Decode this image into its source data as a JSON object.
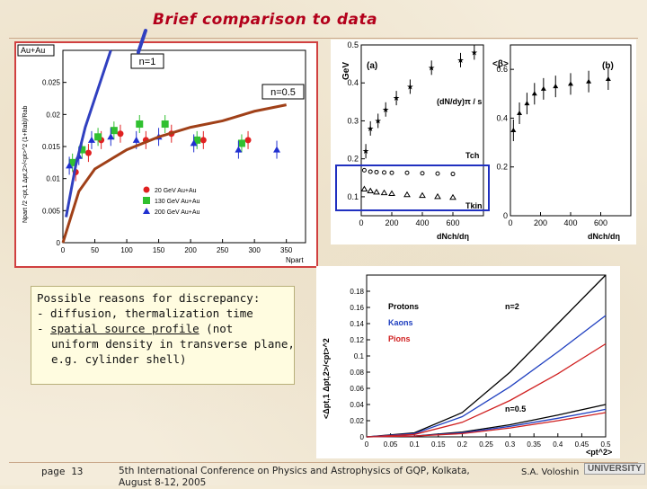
{
  "title": "Brief comparison to data",
  "reasons": {
    "line1": "Possible reasons for discrepancy:",
    "line2": "- diffusion, thermalization time",
    "line3_prefix": "- ",
    "line3_link": "spatial source profile",
    "line3_suffix": " (not",
    "line4": "uniform density in transverse plane,",
    "line5": "e.g. cylinder shell)"
  },
  "footer": {
    "page": "page 13",
    "conference": "5th International Conference on Physics and Astrophysics of GQP, Kolkata, August 8-12, 2005",
    "author": "S.A. Voloshin",
    "logo": "UNIVERSITY"
  },
  "chart_data": [
    {
      "type": "scatter",
      "panel_label": "Au+Au",
      "annotations": [
        "n=1",
        "n=0.5"
      ],
      "xlabel": "Npart",
      "ylabel": "Npart /2 <pt,1 Δpt,2>/<pt>^2 (1+Rab)/Rab",
      "xlim": [
        0,
        380
      ],
      "ylim": [
        0,
        0.03
      ],
      "x_ticks": [
        "0",
        "50",
        "100",
        "150",
        "200",
        "250",
        "300",
        "350"
      ],
      "y_ticks": [
        "0",
        "0.005",
        "0.01",
        "0.015",
        "0.02",
        "0.025"
      ],
      "legend": [
        "20 GeV Au+Au",
        "130 GeV Au+Au",
        "200 GeV Au+Au"
      ],
      "series": [
        {
          "name": "20 GeV Au+Au",
          "color": "#e02020",
          "x": [
            20,
            40,
            60,
            90,
            130,
            170,
            220,
            290
          ],
          "y": [
            0.011,
            0.014,
            0.016,
            0.017,
            0.016,
            0.017,
            0.016,
            0.016
          ]
        },
        {
          "name": "130 GeV Au+Au",
          "color": "#30c030",
          "x": [
            15,
            30,
            55,
            80,
            120,
            160,
            210,
            280
          ],
          "y": [
            0.0125,
            0.0145,
            0.0165,
            0.0175,
            0.0185,
            0.0185,
            0.016,
            0.0155
          ]
        },
        {
          "name": "200 GeV Au+Au",
          "color": "#2030d0",
          "x": [
            10,
            25,
            45,
            75,
            115,
            150,
            205,
            275,
            335
          ],
          "y": [
            0.012,
            0.0135,
            0.016,
            0.0165,
            0.016,
            0.0165,
            0.0155,
            0.0145,
            0.0145
          ]
        }
      ],
      "curve": {
        "x": [
          0,
          25,
          50,
          75,
          100,
          150,
          200,
          250,
          300,
          350
        ],
        "y": [
          0.0,
          0.008,
          0.0115,
          0.013,
          0.0145,
          0.0165,
          0.018,
          0.019,
          0.0205,
          0.0215
        ]
      },
      "fast_curve": {
        "x": [
          5,
          20,
          35,
          55,
          75
        ],
        "y": [
          0.004,
          0.012,
          0.018,
          0.024,
          0.031
        ]
      }
    },
    {
      "type": "scatter",
      "panel_label": "(a)",
      "ylabel": "GeV",
      "xlabel": "dNch/dη",
      "xlim": [
        0,
        800
      ],
      "ylim": [
        0.05,
        0.5
      ],
      "x_ticks": [
        "0",
        "200",
        "400",
        "600"
      ],
      "y_ticks": [
        "0.1",
        "0.2",
        "0.3",
        "0.4",
        "0.5"
      ],
      "labels": [
        "(dN/dy)π / s",
        "Tch",
        "Tkin"
      ],
      "series": [
        {
          "name": "Tch",
          "x": [
            20,
            60,
            100,
            150,
            200,
            300,
            400,
            500,
            600
          ],
          "y": [
            0.17,
            0.166,
            0.165,
            0.164,
            0.163,
            0.163,
            0.162,
            0.161,
            0.16
          ]
        },
        {
          "name": "Tkin",
          "x": [
            20,
            60,
            100,
            150,
            200,
            300,
            400,
            500,
            600
          ],
          "y": [
            0.12,
            0.115,
            0.112,
            0.11,
            0.108,
            0.105,
            0.103,
            0.1,
            0.098
          ]
        },
        {
          "name": "(dN/dy)π / s",
          "x": [
            30,
            60,
            110,
            160,
            230,
            320,
            460,
            650,
            740
          ],
          "y": [
            0.22,
            0.28,
            0.3,
            0.33,
            0.36,
            0.39,
            0.44,
            0.46,
            0.48
          ]
        }
      ]
    },
    {
      "type": "scatter",
      "panel_label": "(b)",
      "ylabel": "<β>",
      "xlabel": "dNch/dη",
      "xlim": [
        0,
        800
      ],
      "ylim": [
        0,
        0.7
      ],
      "x_ticks": [
        "0",
        "200",
        "400",
        "600"
      ],
      "y_ticks": [
        "0",
        "0.2",
        "0.4",
        "0.6"
      ],
      "series": [
        {
          "name": "<β>",
          "x": [
            20,
            60,
            110,
            160,
            220,
            300,
            400,
            520,
            650
          ],
          "y": [
            0.35,
            0.42,
            0.46,
            0.5,
            0.52,
            0.53,
            0.54,
            0.55,
            0.56
          ]
        }
      ]
    },
    {
      "type": "line",
      "xlabel": "<pt^2>",
      "ylabel": "<Δpt,1 Δpt,2>/<pt>^2",
      "xlim": [
        0,
        0.5
      ],
      "ylim": [
        0,
        0.2
      ],
      "x_ticks": [
        "0",
        "0.05",
        "0.1",
        "0.15",
        "0.2",
        "0.25",
        "0.3",
        "0.35",
        "0.4",
        "0.45",
        "0.5"
      ],
      "y_ticks": [
        "0",
        "0.02",
        "0.04",
        "0.06",
        "0.08",
        "0.1",
        "0.12",
        "0.14",
        "0.16",
        "0.18"
      ],
      "legend": [
        "Protons",
        "Kaons",
        "Pions"
      ],
      "annotations": [
        "n=2",
        "n=0.5"
      ],
      "series": [
        {
          "name": "Protons",
          "color": "#000000",
          "x": [
            0,
            0.1,
            0.2,
            0.3,
            0.4,
            0.5
          ],
          "y": [
            0,
            0.005,
            0.03,
            0.08,
            0.14,
            0.2
          ]
        },
        {
          "name": "Kaons",
          "color": "#2040c0",
          "x": [
            0,
            0.1,
            0.2,
            0.3,
            0.4,
            0.5
          ],
          "y": [
            0,
            0.004,
            0.025,
            0.062,
            0.105,
            0.15
          ]
        },
        {
          "name": "Pions",
          "color": "#d02020",
          "x": [
            0,
            0.1,
            0.2,
            0.3,
            0.4,
            0.5
          ],
          "y": [
            0,
            0.003,
            0.018,
            0.045,
            0.078,
            0.115
          ]
        },
        {
          "name": "Protons",
          "color": "#000000",
          "x": [
            0,
            0.1,
            0.2,
            0.3,
            0.4,
            0.5
          ],
          "y": [
            0,
            0.001,
            0.006,
            0.015,
            0.027,
            0.04
          ]
        },
        {
          "name": "Kaons",
          "color": "#2040c0",
          "x": [
            0,
            0.1,
            0.2,
            0.3,
            0.4,
            0.5
          ],
          "y": [
            0,
            0.001,
            0.005,
            0.013,
            0.023,
            0.034
          ]
        },
        {
          "name": "Pions",
          "color": "#d02020",
          "x": [
            0,
            0.1,
            0.2,
            0.3,
            0.4,
            0.5
          ],
          "y": [
            0,
            0.001,
            0.004,
            0.011,
            0.02,
            0.03
          ]
        }
      ]
    }
  ]
}
